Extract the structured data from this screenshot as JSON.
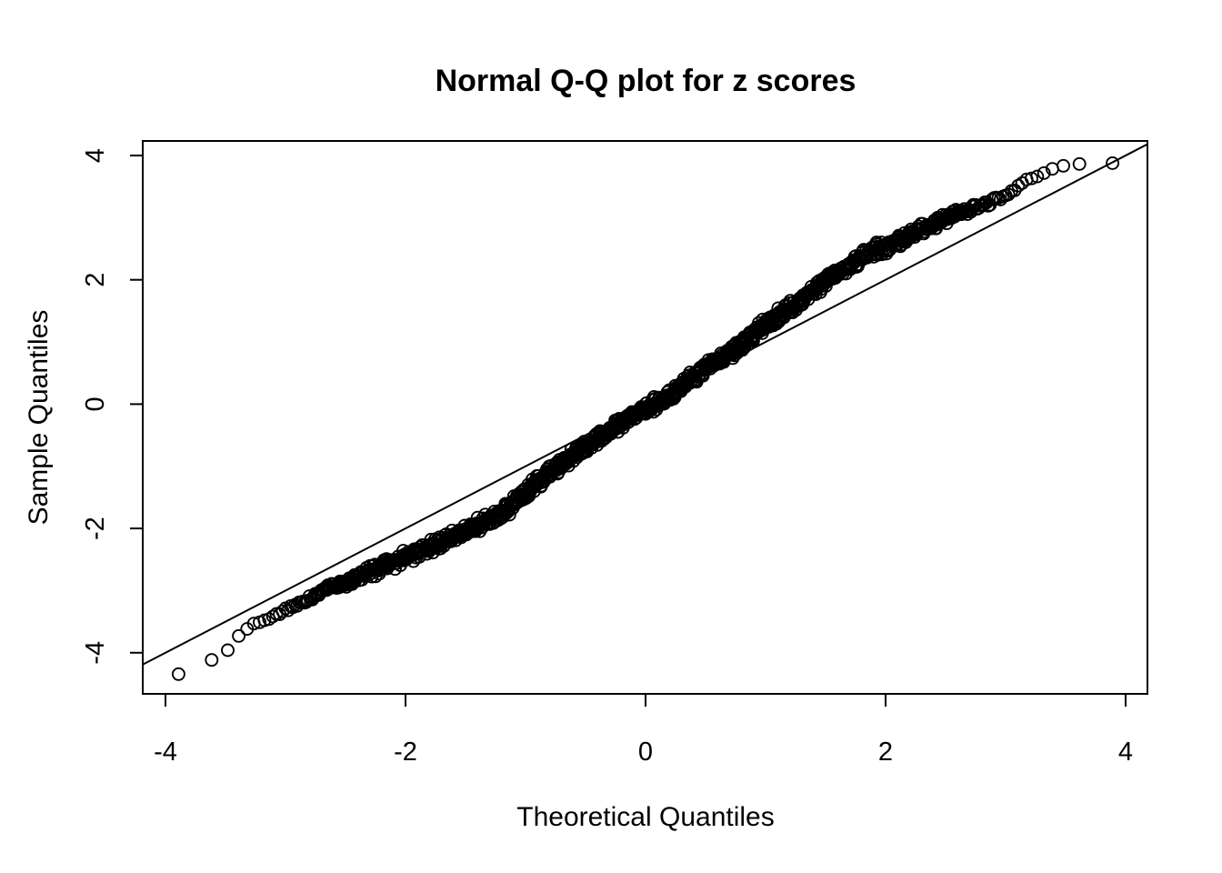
{
  "title": "Normal Q-Q plot for z scores",
  "x_axis": {
    "label": "Theoretical Quantiles",
    "tick_labels": [
      "-4",
      "-2",
      "0",
      "2",
      "4"
    ]
  },
  "y_axis": {
    "label": "Sample Quantiles",
    "tick_labels": [
      "4",
      "2",
      "0",
      "-2",
      "-4"
    ]
  },
  "colors": {
    "foreground": "#000000",
    "background": "#ffffff"
  },
  "chart_data": {
    "type": "scatter",
    "title": "Normal Q-Q plot for z scores",
    "xlabel": "Theoretical Quantiles",
    "ylabel": "Sample Quantiles",
    "xlim": [
      -4.19,
      4.18
    ],
    "ylim": [
      -4.66,
      4.23
    ],
    "x_ticks": [
      -4,
      -2,
      0,
      2,
      4
    ],
    "y_ticks": [
      -4,
      -2,
      0,
      2,
      4
    ],
    "grid": false,
    "legend": false,
    "marker": "open-circle",
    "point_color": "#000000",
    "reference_line": {
      "slope": 1,
      "intercept": 0
    },
    "n_points_estimate": 10000,
    "band_half_width": 0.125,
    "curve_points": [
      [
        -3.89,
        -4.35
      ],
      [
        -3.61,
        -4.11
      ],
      [
        -3.48,
        -3.96
      ],
      [
        -3.39,
        -3.73
      ],
      [
        -3.33,
        -3.63
      ],
      [
        -3.28,
        -3.55
      ],
      [
        -3.1,
        -3.42
      ],
      [
        -2.8,
        -3.12
      ],
      [
        -2.65,
        -2.97
      ],
      [
        -2.3,
        -2.7
      ],
      [
        -2.0,
        -2.46
      ],
      [
        -1.7,
        -2.22
      ],
      [
        -1.45,
        -2.0
      ],
      [
        -1.2,
        -1.76
      ],
      [
        -0.95,
        -1.35
      ],
      [
        -0.7,
        -0.95
      ],
      [
        -0.4,
        -0.55
      ],
      [
        -0.15,
        -0.24
      ],
      [
        0.0,
        -0.07
      ],
      [
        0.2,
        0.12
      ],
      [
        0.4,
        0.43
      ],
      [
        0.6,
        0.7
      ],
      [
        0.8,
        0.96
      ],
      [
        1.0,
        1.28
      ],
      [
        1.2,
        1.55
      ],
      [
        1.5,
        1.96
      ],
      [
        1.82,
        2.39
      ],
      [
        2.1,
        2.63
      ],
      [
        2.4,
        2.9
      ],
      [
        2.58,
        3.04
      ],
      [
        2.8,
        3.2
      ],
      [
        3.01,
        3.36
      ],
      [
        3.16,
        3.58
      ],
      [
        3.3,
        3.7
      ],
      [
        3.41,
        3.8
      ],
      [
        3.48,
        3.83
      ],
      [
        3.61,
        3.87
      ],
      [
        3.89,
        3.88
      ]
    ]
  }
}
